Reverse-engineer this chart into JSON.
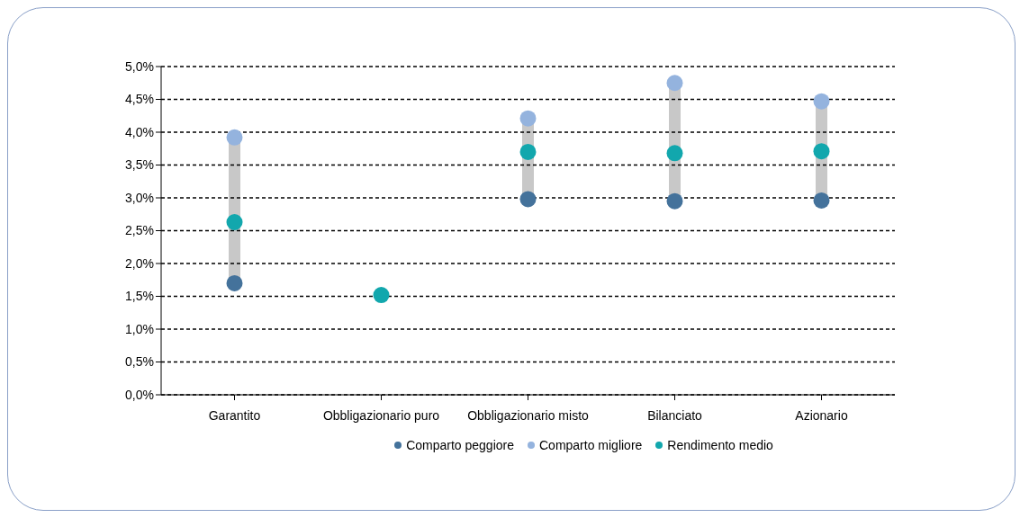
{
  "chart_data": {
    "type": "scatter",
    "categories": [
      "Garantito",
      "Obbligazionario puro",
      "Obbligazionario misto",
      "Bilanciato",
      "Azionario"
    ],
    "series": [
      {
        "name": "Comparto peggiore",
        "color": "#44729b",
        "values": [
          1.7,
          null,
          2.98,
          2.95,
          2.96
        ]
      },
      {
        "name": "Comparto migliore",
        "color": "#94b3de",
        "values": [
          3.92,
          null,
          4.21,
          4.75,
          4.47
        ]
      },
      {
        "name": "Rendimento medio",
        "color": "#12a7ad",
        "values": [
          2.63,
          1.52,
          3.7,
          3.68,
          3.71
        ]
      }
    ],
    "ylim": [
      0,
      5
    ],
    "yticks": [
      {
        "value": 0,
        "label": "0,0%"
      },
      {
        "value": 0.5,
        "label": "0,5%"
      },
      {
        "value": 1,
        "label": "1,0%"
      },
      {
        "value": 1.5,
        "label": "1,5%"
      },
      {
        "value": 2,
        "label": "2,0%"
      },
      {
        "value": 2.5,
        "label": "2,5%"
      },
      {
        "value": 3,
        "label": "3,0%"
      },
      {
        "value": 3.5,
        "label": "3,5%"
      },
      {
        "value": 4,
        "label": "4,0%"
      },
      {
        "value": 4.5,
        "label": "4,5%"
      },
      {
        "value": 5,
        "label": "5,0%"
      }
    ],
    "grid": "y",
    "legend": "bottom",
    "marker": "circle"
  }
}
